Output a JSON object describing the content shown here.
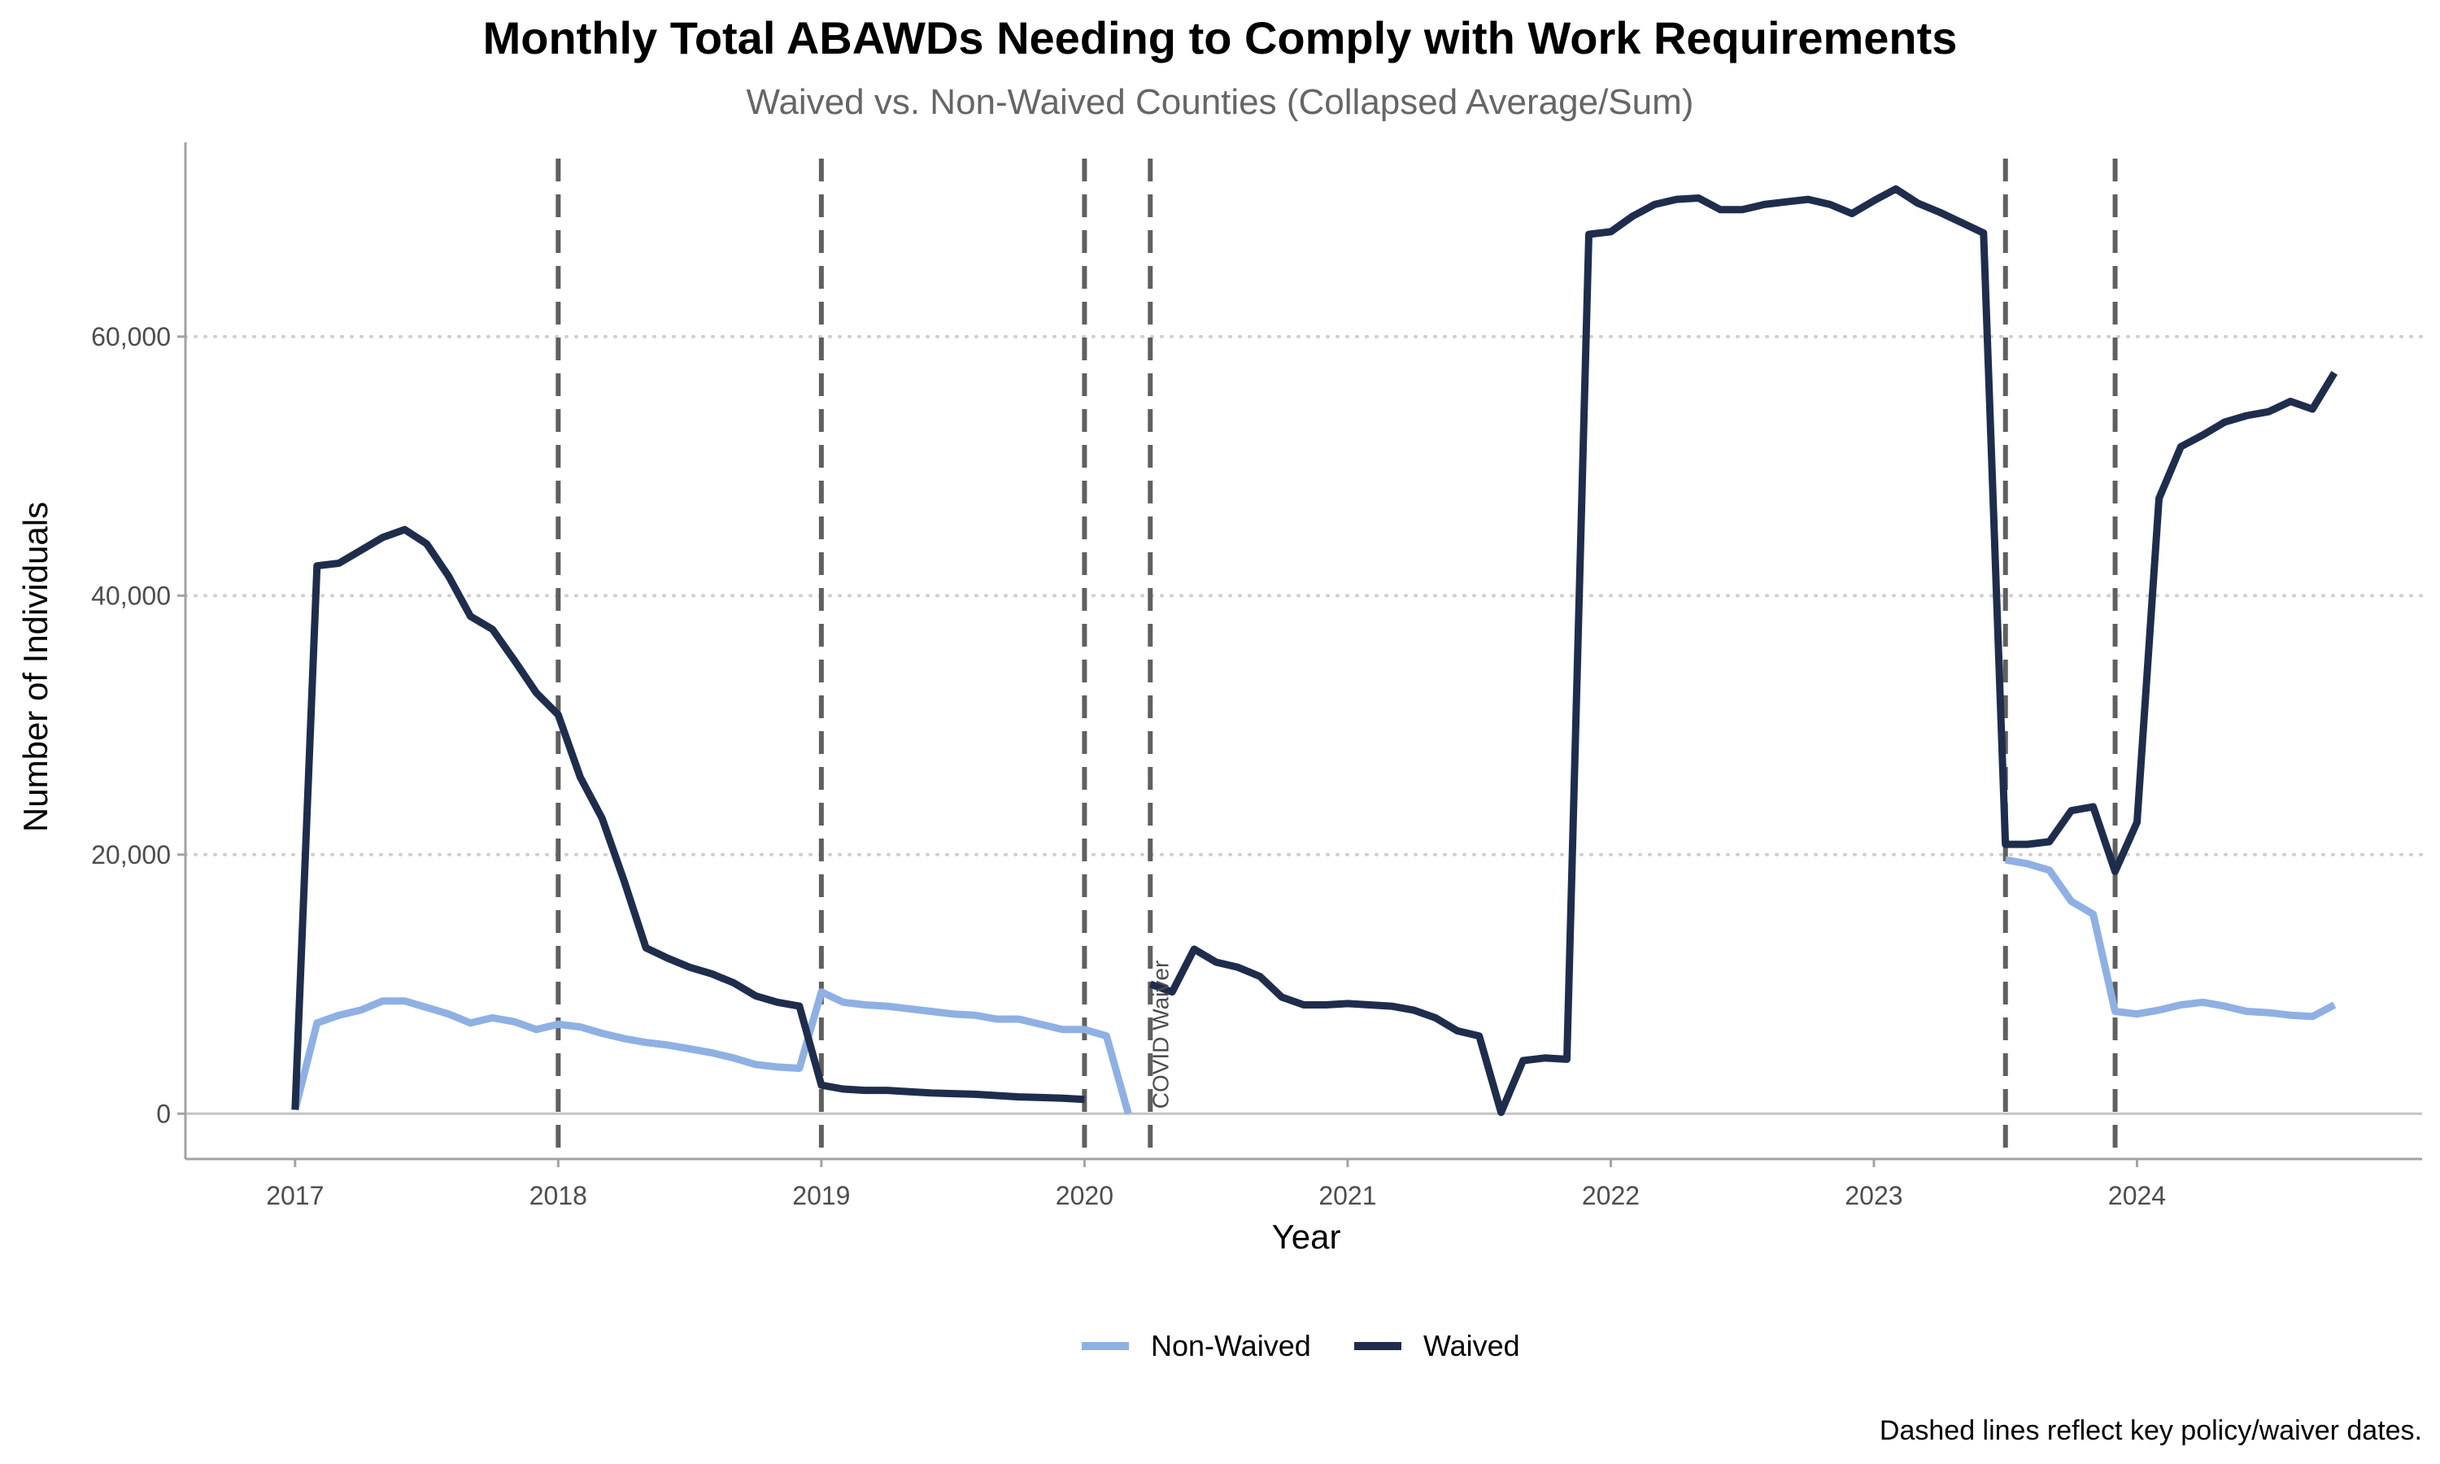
{
  "chart_data": {
    "type": "line",
    "title": "Monthly Total ABAWDs Needing to Comply with Work Requirements",
    "subtitle": "Waived vs. Non-Waived Counties (Collapsed Average/Sum)",
    "xlabel": "Year",
    "ylabel": "Number of Individuals",
    "caption": "Dashed lines reflect key policy/waiver dates.",
    "x_ticks": [
      "2017",
      "2018",
      "2019",
      "2020",
      "2021",
      "2022",
      "2023",
      "2024"
    ],
    "y_ticks": [
      "0",
      "20,000",
      "40,000",
      "60,000"
    ],
    "y_tick_values": [
      0,
      20000,
      40000,
      60000
    ],
    "xlim": [
      "2016-08",
      "2025-02"
    ],
    "ylim": [
      -3500,
      75000
    ],
    "grid": "horizontal dotted",
    "legend_position": "bottom",
    "vlines": [
      "2018-01",
      "2019-01",
      "2020-01",
      "2020-04",
      "2023-07",
      "2023-12"
    ],
    "annotations": [
      {
        "text": "COVID Waiver",
        "date": "2020-04"
      }
    ],
    "series": [
      {
        "name": "Non-Waived",
        "color": "#8fb0e3",
        "segments": [
          {
            "start": "2017-01",
            "values": [
              300,
              7000,
              7600,
              8000,
              8700,
              8700,
              8200,
              7700,
              7000,
              7400,
              7100,
              6500,
              6900,
              6700,
              6200,
              5800,
              5500,
              5300,
              5000,
              4700,
              4300,
              3800,
              3600,
              3500,
              9400,
              8600,
              8400,
              8300,
              8100,
              7900,
              7700,
              7600,
              7300,
              7300,
              6900,
              6500,
              6500,
              6000,
              0
            ]
          },
          {
            "start": "2023-07",
            "values": [
              19600,
              19300,
              18800,
              16400,
              15400,
              7900,
              7700,
              8000,
              8400,
              8600,
              8300,
              7900,
              7800,
              7600,
              7500,
              8400
            ]
          }
        ]
      },
      {
        "name": "Waived",
        "color": "#1f2d4d",
        "segments": [
          {
            "start": "2017-01",
            "values": [
              300,
              42300,
              42500,
              43500,
              44500,
              45100,
              44000,
              41500,
              38400,
              37400,
              35000,
              32500,
              30800,
              26000,
              22800,
              18000,
              12800,
              12000,
              11300,
              10800,
              10100,
              9100,
              8600,
              8300,
              2200,
              1900,
              1800,
              1800,
              1700,
              1600,
              1550,
              1500,
              1400,
              1300,
              1250,
              1200,
              1100
            ]
          },
          {
            "start": "2020-04",
            "values": [
              10000,
              9400,
              12700,
              11700,
              11300,
              10600,
              9000,
              8400,
              8400,
              8500,
              8400,
              8300,
              8000,
              7400,
              6400,
              6000,
              100,
              4100,
              4300,
              4200,
              67900,
              68100,
              69300,
              70200,
              70600,
              70700,
              69800,
              69800,
              70200,
              70400,
              70600,
              70200,
              69500,
              70500,
              71400,
              70300,
              69600,
              68800,
              68000,
              20800,
              20800,
              21000,
              23400,
              23700,
              18700,
              22500,
              47500,
              51500,
              52400,
              53400,
              53900,
              54200,
              55000,
              54400,
              57200
            ]
          }
        ]
      }
    ]
  }
}
